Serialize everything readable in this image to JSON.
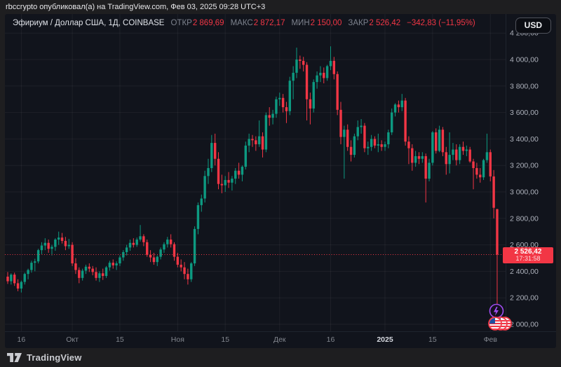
{
  "attribution": "rbccrypto опубликовал(а) на TradingView.com, Фев 03, 2025 09:28 UTC+3",
  "header": {
    "symbol_title": "Эфириум / Доллар США, 1Д, COINBASE",
    "fields": [
      {
        "label": "ОТКР",
        "value": "2 869,69"
      },
      {
        "label": "МАКС",
        "value": "2 872,17"
      },
      {
        "label": "МИН",
        "value": "2 150,00"
      },
      {
        "label": "ЗАКР",
        "value": "2 526,42"
      }
    ],
    "change": "−342,83 (−11,95%)",
    "currency_button": "USD"
  },
  "price_line": {
    "price": 2526.42,
    "label": "2 526,42",
    "countdown": "17:31:58"
  },
  "price_axis": {
    "labels": [
      {
        "value": 4200,
        "label": "4 200,00"
      },
      {
        "value": 4000,
        "label": "4 000,00"
      },
      {
        "value": 3800,
        "label": "3 800,00"
      },
      {
        "value": 3600,
        "label": "3 600,00"
      },
      {
        "value": 3400,
        "label": "3 400,00"
      },
      {
        "value": 3200,
        "label": "3 200,00"
      },
      {
        "value": 3000,
        "label": "3 000,00"
      },
      {
        "value": 2800,
        "label": "2 800,00"
      },
      {
        "value": 2600,
        "label": "2 600,00"
      },
      {
        "value": 2400,
        "label": "2 400,00"
      },
      {
        "value": 2200,
        "label": "2 200,00"
      },
      {
        "value": 2000,
        "label": "2 000,00"
      }
    ]
  },
  "time_axis": {
    "ticks": [
      {
        "label": "16",
        "index": 4,
        "bold": false
      },
      {
        "label": "Окт",
        "index": 19,
        "bold": false
      },
      {
        "label": "15",
        "index": 33,
        "bold": false
      },
      {
        "label": "Ноя",
        "index": 50,
        "bold": false
      },
      {
        "label": "15",
        "index": 64,
        "bold": false
      },
      {
        "label": "Дек",
        "index": 80,
        "bold": false
      },
      {
        "label": "16",
        "index": 95,
        "bold": false
      },
      {
        "label": "2025",
        "index": 111,
        "bold": true
      },
      {
        "label": "15",
        "index": 125,
        "bold": false
      },
      {
        "label": "Фев",
        "index": 142,
        "bold": false
      }
    ]
  },
  "event_markers": [
    {
      "name": "lightning-event",
      "shape": "lightning-circle",
      "color": "#a14df2"
    },
    {
      "name": "us-flag-events",
      "shape": "flag-coins",
      "color": "#f23645"
    }
  ],
  "footer": {
    "brand": "TradingView"
  },
  "colors": {
    "up": "#0d9a81",
    "down": "#f23645",
    "panel_bg": "#11141c",
    "outer_bg": "#1e1e20",
    "grid": "rgba(255,255,255,0.055)",
    "axis_text": "#adb1bb",
    "time_text": "#83878f",
    "time_text_bold": "#d6d9e0",
    "price_line": "#f23645"
  },
  "chart_data": {
    "type": "candlestick",
    "title": "Эфириум / Доллар США",
    "symbol": "ETH/USD",
    "interval": "1Д",
    "exchange": "COINBASE",
    "open": 2869.69,
    "high": 2872.17,
    "low": 2150.0,
    "close": 2526.42,
    "change": -342.83,
    "change_pct": -11.95,
    "ylim": [
      2000,
      4200
    ],
    "grid": true,
    "start_date": "2024-09-12",
    "end_date": "2025-02-03",
    "ohlc": [
      [
        2360,
        2395,
        2305,
        2325
      ],
      [
        2325,
        2385,
        2300,
        2375
      ],
      [
        2375,
        2390,
        2290,
        2310
      ],
      [
        2310,
        2340,
        2250,
        2270
      ],
      [
        2270,
        2330,
        2240,
        2320
      ],
      [
        2320,
        2390,
        2300,
        2380
      ],
      [
        2380,
        2420,
        2340,
        2410
      ],
      [
        2410,
        2480,
        2390,
        2465
      ],
      [
        2465,
        2495,
        2400,
        2475
      ],
      [
        2475,
        2570,
        2460,
        2560
      ],
      [
        2560,
        2620,
        2530,
        2595
      ],
      [
        2595,
        2650,
        2560,
        2615
      ],
      [
        2615,
        2640,
        2540,
        2570
      ],
      [
        2570,
        2600,
        2520,
        2585
      ],
      [
        2585,
        2650,
        2555,
        2640
      ],
      [
        2640,
        2700,
        2600,
        2655
      ],
      [
        2655,
        2690,
        2610,
        2630
      ],
      [
        2630,
        2660,
        2560,
        2590
      ],
      [
        2590,
        2645,
        2570,
        2600
      ],
      [
        2600,
        2620,
        2440,
        2460
      ],
      [
        2460,
        2500,
        2380,
        2410
      ],
      [
        2410,
        2430,
        2310,
        2350
      ],
      [
        2350,
        2420,
        2330,
        2405
      ],
      [
        2405,
        2450,
        2380,
        2435
      ],
      [
        2435,
        2460,
        2395,
        2420
      ],
      [
        2420,
        2440,
        2370,
        2395
      ],
      [
        2395,
        2430,
        2330,
        2350
      ],
      [
        2350,
        2400,
        2320,
        2385
      ],
      [
        2385,
        2420,
        2335,
        2365
      ],
      [
        2365,
        2440,
        2350,
        2430
      ],
      [
        2430,
        2480,
        2405,
        2465
      ],
      [
        2465,
        2490,
        2420,
        2445
      ],
      [
        2445,
        2475,
        2410,
        2460
      ],
      [
        2460,
        2520,
        2440,
        2505
      ],
      [
        2505,
        2560,
        2480,
        2545
      ],
      [
        2545,
        2600,
        2520,
        2580
      ],
      [
        2580,
        2640,
        2555,
        2615
      ],
      [
        2615,
        2650,
        2580,
        2600
      ],
      [
        2600,
        2655,
        2585,
        2640
      ],
      [
        2640,
        2750,
        2625,
        2665
      ],
      [
        2665,
        2680,
        2590,
        2620
      ],
      [
        2620,
        2640,
        2510,
        2525
      ],
      [
        2525,
        2560,
        2470,
        2505
      ],
      [
        2505,
        2540,
        2450,
        2470
      ],
      [
        2470,
        2520,
        2440,
        2510
      ],
      [
        2510,
        2580,
        2490,
        2565
      ],
      [
        2565,
        2620,
        2540,
        2605
      ],
      [
        2605,
        2660,
        2580,
        2640
      ],
      [
        2640,
        2680,
        2580,
        2605
      ],
      [
        2605,
        2620,
        2480,
        2510
      ],
      [
        2510,
        2540,
        2430,
        2450
      ],
      [
        2450,
        2490,
        2400,
        2430
      ],
      [
        2430,
        2470,
        2340,
        2380
      ],
      [
        2380,
        2420,
        2300,
        2340
      ],
      [
        2340,
        2470,
        2320,
        2460
      ],
      [
        2460,
        2740,
        2440,
        2720
      ],
      [
        2720,
        2920,
        2680,
        2900
      ],
      [
        2900,
        2980,
        2850,
        2950
      ],
      [
        2950,
        3160,
        2920,
        3120
      ],
      [
        3120,
        3250,
        3060,
        3180
      ],
      [
        3180,
        3430,
        3150,
        3370
      ],
      [
        3370,
        3440,
        3200,
        3250
      ],
      [
        3250,
        3300,
        3020,
        3060
      ],
      [
        3060,
        3130,
        2990,
        3050
      ],
      [
        3050,
        3120,
        3000,
        3090
      ],
      [
        3090,
        3150,
        3030,
        3070
      ],
      [
        3070,
        3120,
        3010,
        3100
      ],
      [
        3100,
        3180,
        3060,
        3160
      ],
      [
        3160,
        3220,
        3100,
        3130
      ],
      [
        3130,
        3200,
        3080,
        3190
      ],
      [
        3190,
        3380,
        3170,
        3350
      ],
      [
        3350,
        3440,
        3300,
        3400
      ],
      [
        3400,
        3430,
        3340,
        3390
      ],
      [
        3390,
        3420,
        3310,
        3360
      ],
      [
        3360,
        3540,
        3340,
        3420
      ],
      [
        3420,
        3450,
        3260,
        3320
      ],
      [
        3320,
        3600,
        3300,
        3580
      ],
      [
        3580,
        3640,
        3500,
        3560
      ],
      [
        3560,
        3620,
        3510,
        3590
      ],
      [
        3590,
        3720,
        3560,
        3700
      ],
      [
        3700,
        3750,
        3650,
        3710
      ],
      [
        3710,
        3740,
        3600,
        3640
      ],
      [
        3640,
        3680,
        3520,
        3610
      ],
      [
        3610,
        3870,
        3580,
        3840
      ],
      [
        3840,
        3950,
        3700,
        3900
      ],
      [
        3900,
        4090,
        3860,
        4000
      ],
      [
        4000,
        4030,
        3930,
        3990
      ],
      [
        3990,
        4020,
        3910,
        3960
      ],
      [
        3960,
        3980,
        3540,
        3700
      ],
      [
        3700,
        3750,
        3510,
        3630
      ],
      [
        3630,
        3850,
        3600,
        3830
      ],
      [
        3830,
        3910,
        3780,
        3880
      ],
      [
        3880,
        3950,
        3830,
        3900
      ],
      [
        3900,
        3940,
        3820,
        3860
      ],
      [
        3860,
        3960,
        3840,
        3950
      ],
      [
        3950,
        4100,
        3920,
        3990
      ],
      [
        3990,
        4020,
        3850,
        3890
      ],
      [
        3890,
        3910,
        3580,
        3620
      ],
      [
        3620,
        3680,
        3360,
        3415
      ],
      [
        3415,
        3500,
        3100,
        3470
      ],
      [
        3470,
        3510,
        3310,
        3340
      ],
      [
        3340,
        3390,
        3230,
        3280
      ],
      [
        3280,
        3440,
        3260,
        3420
      ],
      [
        3420,
        3540,
        3390,
        3490
      ],
      [
        3490,
        3550,
        3440,
        3500
      ],
      [
        3500,
        3520,
        3300,
        3330
      ],
      [
        3330,
        3380,
        3280,
        3340
      ],
      [
        3340,
        3430,
        3310,
        3400
      ],
      [
        3400,
        3420,
        3330,
        3350
      ],
      [
        3350,
        3440,
        3300,
        3360
      ],
      [
        3360,
        3390,
        3310,
        3340
      ],
      [
        3340,
        3380,
        3310,
        3360
      ],
      [
        3360,
        3470,
        3330,
        3450
      ],
      [
        3450,
        3630,
        3430,
        3600
      ],
      [
        3600,
        3670,
        3570,
        3660
      ],
      [
        3660,
        3690,
        3600,
        3640
      ],
      [
        3640,
        3740,
        3610,
        3690
      ],
      [
        3690,
        3710,
        3350,
        3380
      ],
      [
        3380,
        3420,
        3210,
        3330
      ],
      [
        3330,
        3360,
        3160,
        3220
      ],
      [
        3220,
        3310,
        3190,
        3270
      ],
      [
        3270,
        3300,
        3210,
        3250
      ],
      [
        3250,
        3300,
        3220,
        3270
      ],
      [
        3270,
        3290,
        2920,
        3100
      ],
      [
        3100,
        3250,
        3080,
        3220
      ],
      [
        3220,
        3460,
        3200,
        3450
      ],
      [
        3450,
        3480,
        3290,
        3310
      ],
      [
        3310,
        3500,
        3300,
        3470
      ],
      [
        3470,
        3490,
        3270,
        3300
      ],
      [
        3300,
        3340,
        3130,
        3210
      ],
      [
        3210,
        3450,
        3140,
        3280
      ],
      [
        3280,
        3370,
        3240,
        3320
      ],
      [
        3320,
        3360,
        3200,
        3240
      ],
      [
        3240,
        3360,
        3210,
        3340
      ],
      [
        3340,
        3380,
        3280,
        3310
      ],
      [
        3310,
        3350,
        3270,
        3320
      ],
      [
        3320,
        3340,
        3220,
        3230
      ],
      [
        3230,
        3250,
        3020,
        3180
      ],
      [
        3180,
        3220,
        3100,
        3130
      ],
      [
        3130,
        3180,
        3070,
        3110
      ],
      [
        3110,
        3250,
        3090,
        3240
      ],
      [
        3240,
        3440,
        3220,
        3300
      ],
      [
        3300,
        3320,
        3080,
        3117
      ],
      [
        3117,
        3165,
        2800,
        2880
      ],
      [
        2869.69,
        2872.17,
        2150,
        2526.42
      ]
    ]
  }
}
